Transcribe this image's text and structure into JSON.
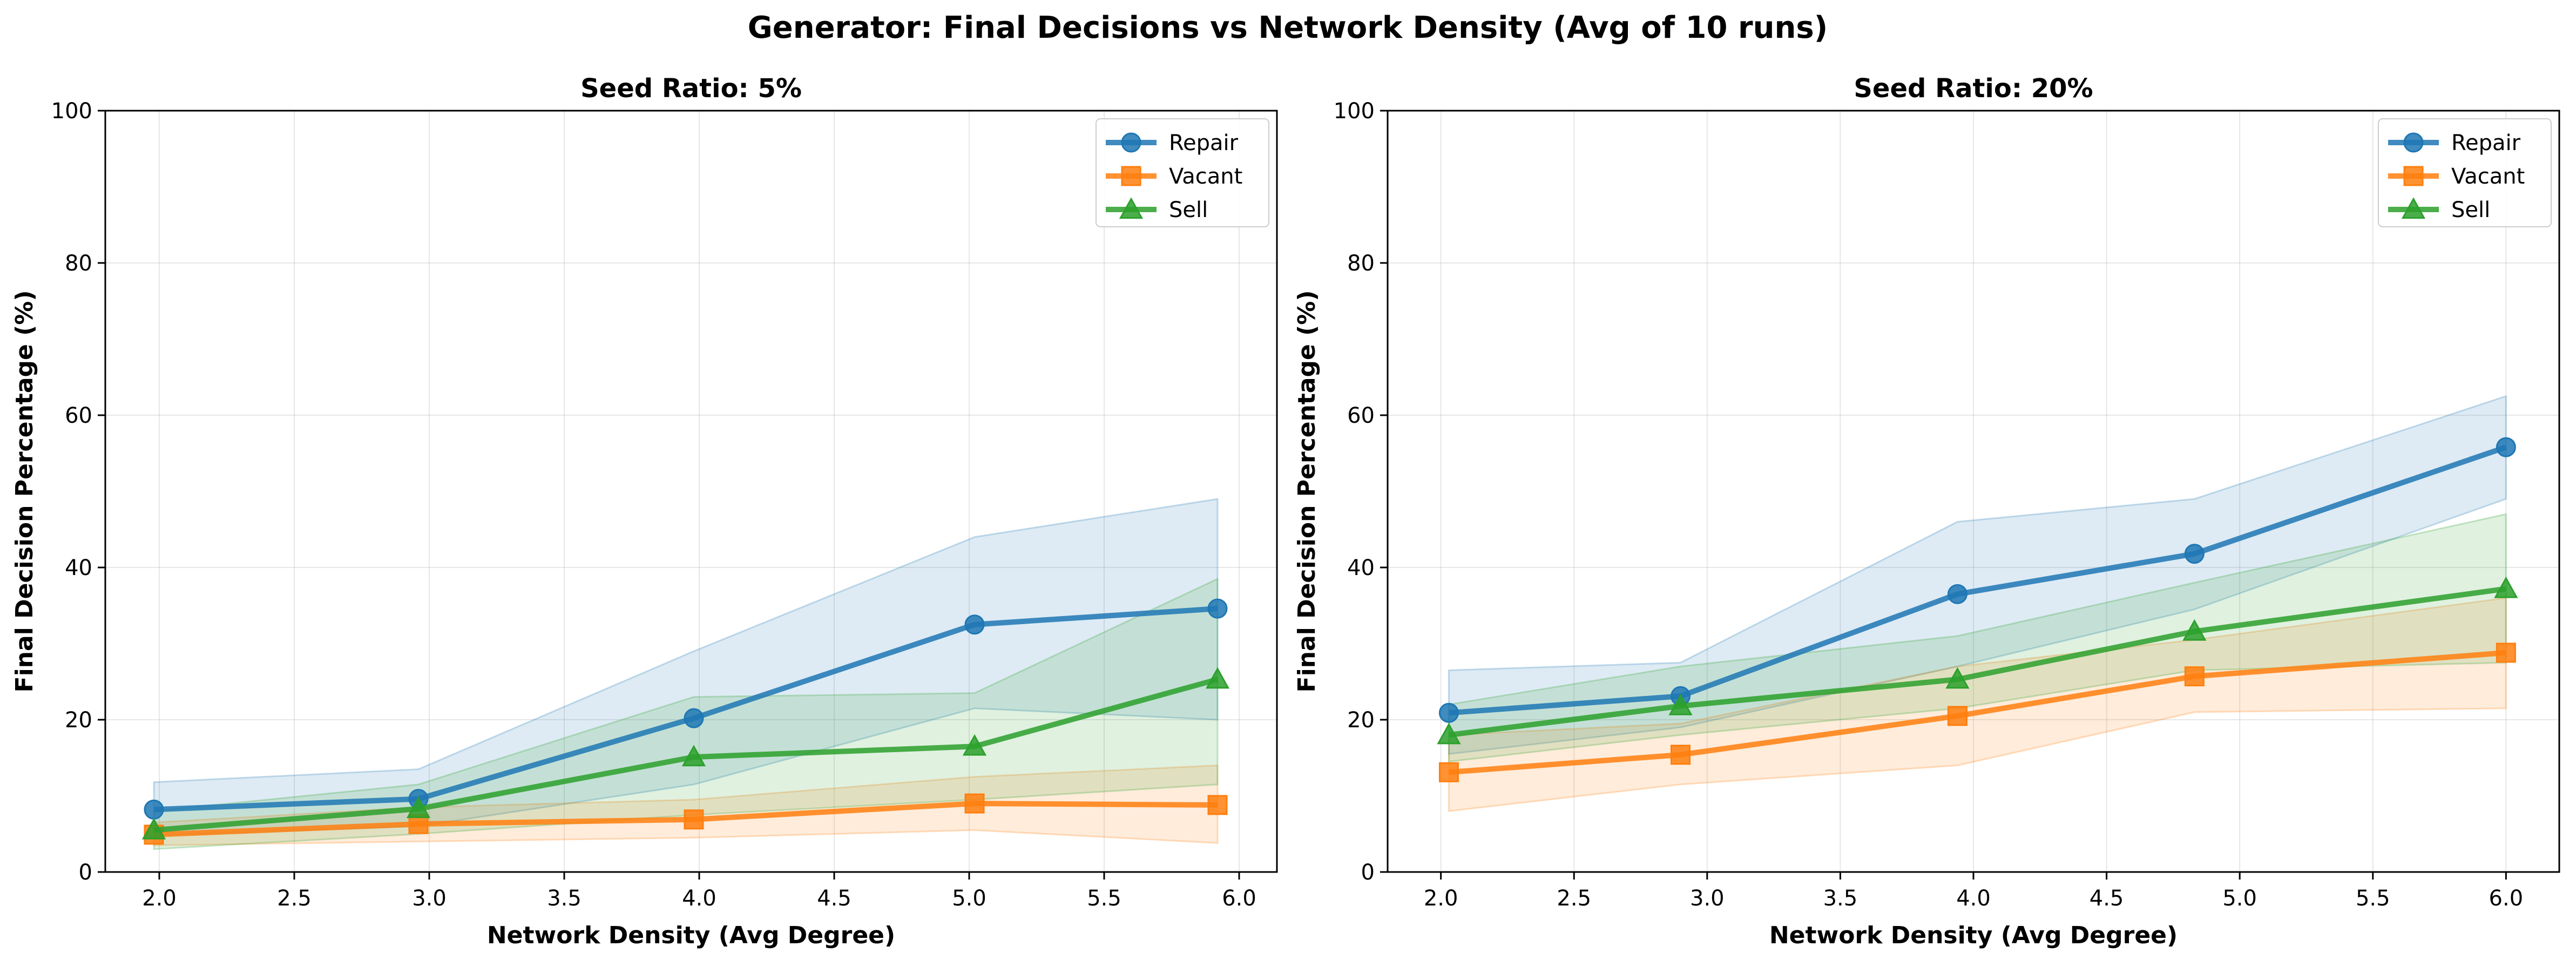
{
  "suptitle": "Generator: Final Decisions vs Network Density (Avg of 10 runs)",
  "colors": {
    "Repair": "#1f77b4",
    "Vacant": "#ff7f0e",
    "Sell": "#2ca02c"
  },
  "chart_data": [
    {
      "type": "line",
      "title": "Seed Ratio: 5%",
      "xlabel": "Network Density (Avg Degree)",
      "ylabel": "Final Decision Percentage (%)",
      "xlim": [
        1.8,
        6.14
      ],
      "ylim": [
        0,
        100
      ],
      "xticks": [
        "2.0",
        "2.5",
        "3.0",
        "3.5",
        "4.0",
        "4.5",
        "5.0",
        "5.5",
        "6.0"
      ],
      "yticks": [
        "0",
        "20",
        "40",
        "60",
        "80",
        "100"
      ],
      "grid": true,
      "legend": "top-right",
      "x": [
        1.98,
        2.96,
        3.98,
        5.02,
        5.92
      ],
      "series": [
        {
          "name": "Repair",
          "marker": "circle",
          "values": [
            8.2,
            9.6,
            20.2,
            32.5,
            34.6
          ],
          "lower": [
            4.8,
            6.0,
            11.5,
            21.5,
            20.0
          ],
          "upper": [
            11.8,
            13.5,
            29.0,
            44.0,
            49.0
          ]
        },
        {
          "name": "Vacant",
          "marker": "square",
          "values": [
            4.9,
            6.3,
            6.9,
            9.0,
            8.8
          ],
          "lower": [
            3.5,
            4.0,
            4.5,
            5.5,
            3.8
          ],
          "upper": [
            6.5,
            8.5,
            9.5,
            12.5,
            14.0
          ]
        },
        {
          "name": "Sell",
          "marker": "triangle",
          "values": [
            5.5,
            8.3,
            15.1,
            16.5,
            25.3
          ],
          "lower": [
            3.0,
            5.0,
            7.5,
            9.5,
            11.5
          ],
          "upper": [
            8.0,
            11.5,
            23.0,
            23.5,
            38.5
          ]
        }
      ]
    },
    {
      "type": "line",
      "title": "Seed Ratio: 20%",
      "xlabel": "Network Density (Avg Degree)",
      "ylabel": "Final Decision Percentage (%)",
      "xlim": [
        1.8,
        6.2
      ],
      "ylim": [
        0,
        100
      ],
      "xticks": [
        "2.0",
        "2.5",
        "3.0",
        "3.5",
        "4.0",
        "4.5",
        "5.0",
        "5.5",
        "6.0"
      ],
      "yticks": [
        "0",
        "20",
        "40",
        "60",
        "80",
        "100"
      ],
      "grid": true,
      "legend": "top-right",
      "x": [
        2.03,
        2.9,
        3.94,
        4.83,
        6.0
      ],
      "series": [
        {
          "name": "Repair",
          "marker": "circle",
          "values": [
            20.9,
            23.1,
            36.5,
            41.8,
            55.8
          ],
          "lower": [
            15.5,
            19.0,
            27.0,
            34.5,
            49.0
          ],
          "upper": [
            26.5,
            27.5,
            46.0,
            49.0,
            62.5
          ]
        },
        {
          "name": "Vacant",
          "marker": "square",
          "values": [
            13.1,
            15.4,
            20.5,
            25.7,
            28.8
          ],
          "lower": [
            8.0,
            11.5,
            14.0,
            21.0,
            21.5
          ],
          "upper": [
            18.0,
            19.5,
            27.0,
            30.5,
            36.0
          ]
        },
        {
          "name": "Sell",
          "marker": "triangle",
          "values": [
            18.0,
            21.8,
            25.3,
            31.6,
            37.2
          ],
          "lower": [
            14.5,
            18.0,
            21.5,
            26.5,
            27.5
          ],
          "upper": [
            22.0,
            27.0,
            31.0,
            38.0,
            47.0
          ]
        }
      ]
    }
  ]
}
